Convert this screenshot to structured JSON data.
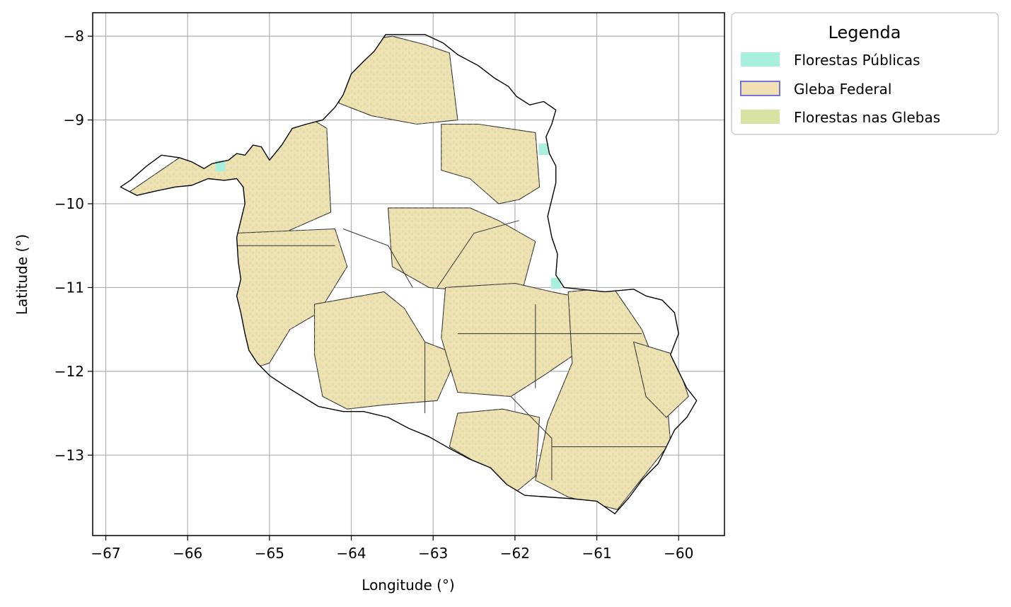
{
  "chart_data": {
    "type": "map",
    "title": "",
    "xlabel": "Longitude (°)",
    "ylabel": "Latitude (°)",
    "xlim": [
      -67.16,
      -59.44
    ],
    "ylim": [
      -13.96,
      -7.72
    ],
    "xticks": [
      -67,
      -66,
      -65,
      -64,
      -63,
      -62,
      -61,
      -60
    ],
    "yticks": [
      -8,
      -9,
      -10,
      -11,
      -12,
      -13
    ],
    "xtick_labels": [
      "−67",
      "−66",
      "−65",
      "−64",
      "−63",
      "−62",
      "−61",
      "−60"
    ],
    "ytick_labels": [
      "−8",
      "−9",
      "−10",
      "−11",
      "−12",
      "−13"
    ],
    "grid": true,
    "legend": {
      "title": "Legenda",
      "placement": "outside-upper-right",
      "entries": [
        {
          "label": "Florestas Públicas",
          "color": "#a8f0dd",
          "edge": "none"
        },
        {
          "label": "Gleba Federal",
          "color": "#f0e0b4",
          "edge": "#6666dd"
        },
        {
          "label": "Florestas nas Glebas",
          "color": "#d8e3a2",
          "edge": "none"
        }
      ]
    },
    "colors": {
      "boundary": "#000000",
      "gleba_fill": "#f0e0b4",
      "gleba_edge": "#333333",
      "florestas_glebas": "#cbe39a",
      "florestas_publicas": "#a8f0dd",
      "grid": "#b0b0b0"
    }
  }
}
